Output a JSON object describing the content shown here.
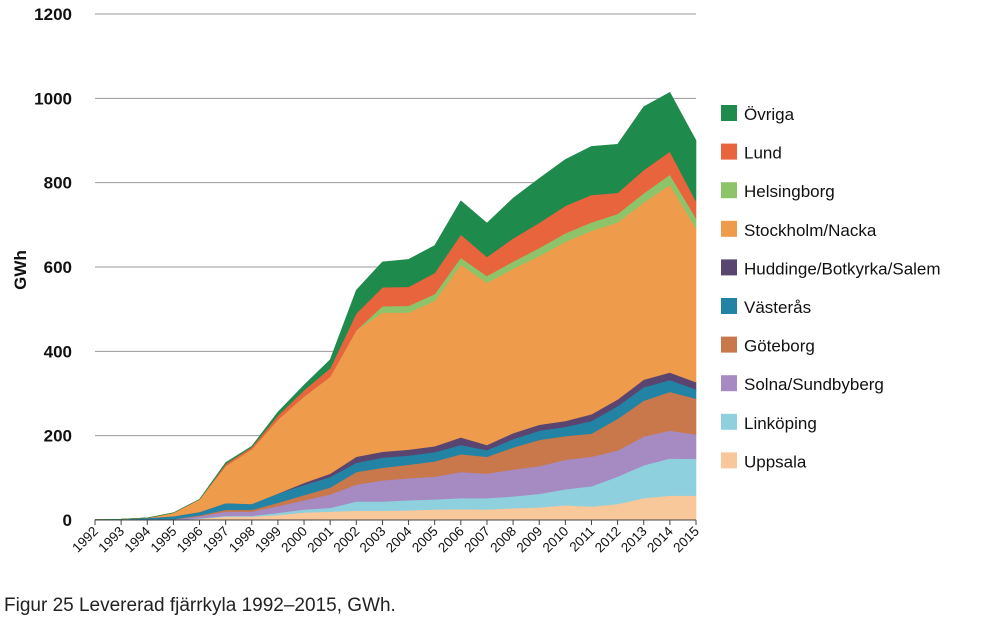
{
  "caption": "Figur 25 Levererad fjärrkyla 1992–2015, GWh.",
  "chart_data": {
    "type": "area",
    "stacked": true,
    "ylabel": "GWh",
    "xlabel": "",
    "ylim": [
      0,
      1200
    ],
    "yticks": [
      0,
      200,
      400,
      600,
      800,
      1000,
      1200
    ],
    "grid": true,
    "legend_position": "right",
    "categories": [
      "1992",
      "1993",
      "1994",
      "1995",
      "1996",
      "1997",
      "1998",
      "1999",
      "2000",
      "2001",
      "2002",
      "2003",
      "2004",
      "2005",
      "2006",
      "2007",
      "2008",
      "2009",
      "2010",
      "2011",
      "2012",
      "2013",
      "2014",
      "2015"
    ],
    "series": [
      {
        "name": "Uppsala",
        "color": "#f8c79a",
        "values": [
          0,
          0,
          0,
          0,
          3,
          8,
          8,
          12,
          18,
          20,
          22,
          22,
          23,
          25,
          26,
          25,
          28,
          30,
          35,
          32,
          38,
          52,
          58,
          58
        ]
      },
      {
        "name": "Linköping",
        "color": "#8fd0df",
        "values": [
          0,
          0,
          0,
          0,
          1,
          2,
          2,
          5,
          7,
          9,
          22,
          22,
          24,
          24,
          26,
          27,
          28,
          32,
          38,
          48,
          65,
          78,
          88,
          87
        ]
      },
      {
        "name": "Solna/Sundbyberg",
        "color": "#a68ac2",
        "values": [
          0,
          0,
          0,
          2,
          5,
          10,
          10,
          16,
          22,
          32,
          40,
          50,
          52,
          54,
          62,
          58,
          64,
          66,
          70,
          70,
          62,
          68,
          66,
          58
        ]
      },
      {
        "name": "Göteborg",
        "color": "#c8784a",
        "values": [
          0,
          0,
          0,
          0,
          2,
          4,
          4,
          8,
          12,
          16,
          30,
          30,
          32,
          36,
          42,
          40,
          52,
          62,
          56,
          55,
          75,
          85,
          92,
          85
        ]
      },
      {
        "name": "Västerås",
        "color": "#2383a4",
        "values": [
          1,
          2,
          5,
          7,
          8,
          16,
          14,
          22,
          24,
          25,
          22,
          24,
          22,
          22,
          22,
          16,
          20,
          22,
          22,
          30,
          30,
          32,
          28,
          22
        ]
      },
      {
        "name": "Huddinge/Botkyrka/Salem",
        "color": "#5a4570",
        "values": [
          0,
          0,
          0,
          0,
          0,
          0,
          0,
          0,
          5,
          8,
          14,
          14,
          14,
          14,
          18,
          12,
          14,
          14,
          14,
          16,
          16,
          18,
          18,
          17
        ]
      },
      {
        "name": "Stockholm/Nacka",
        "color": "#ef9b4c",
        "values": [
          0,
          0,
          0,
          8,
          30,
          88,
          130,
          175,
          205,
          230,
          300,
          330,
          325,
          345,
          410,
          385,
          390,
          400,
          425,
          435,
          420,
          420,
          445,
          365
        ]
      },
      {
        "name": "Helsingborg",
        "color": "#8dc46a",
        "values": [
          0,
          0,
          0,
          0,
          0,
          0,
          0,
          0,
          0,
          0,
          0,
          15,
          16,
          16,
          16,
          16,
          17,
          19,
          20,
          20,
          20,
          22,
          24,
          24
        ]
      },
      {
        "name": "Lund",
        "color": "#e8643c",
        "values": [
          0,
          0,
          0,
          0,
          0,
          5,
          5,
          10,
          15,
          20,
          40,
          45,
          45,
          50,
          55,
          45,
          55,
          60,
          65,
          65,
          50,
          55,
          55,
          40
        ]
      },
      {
        "name": "Övriga",
        "color": "#1e8a4c",
        "values": [
          0,
          0,
          0,
          0,
          0,
          3,
          2,
          8,
          12,
          20,
          55,
          60,
          65,
          65,
          80,
          80,
          95,
          105,
          110,
          115,
          115,
          150,
          140,
          144
        ]
      }
    ]
  }
}
